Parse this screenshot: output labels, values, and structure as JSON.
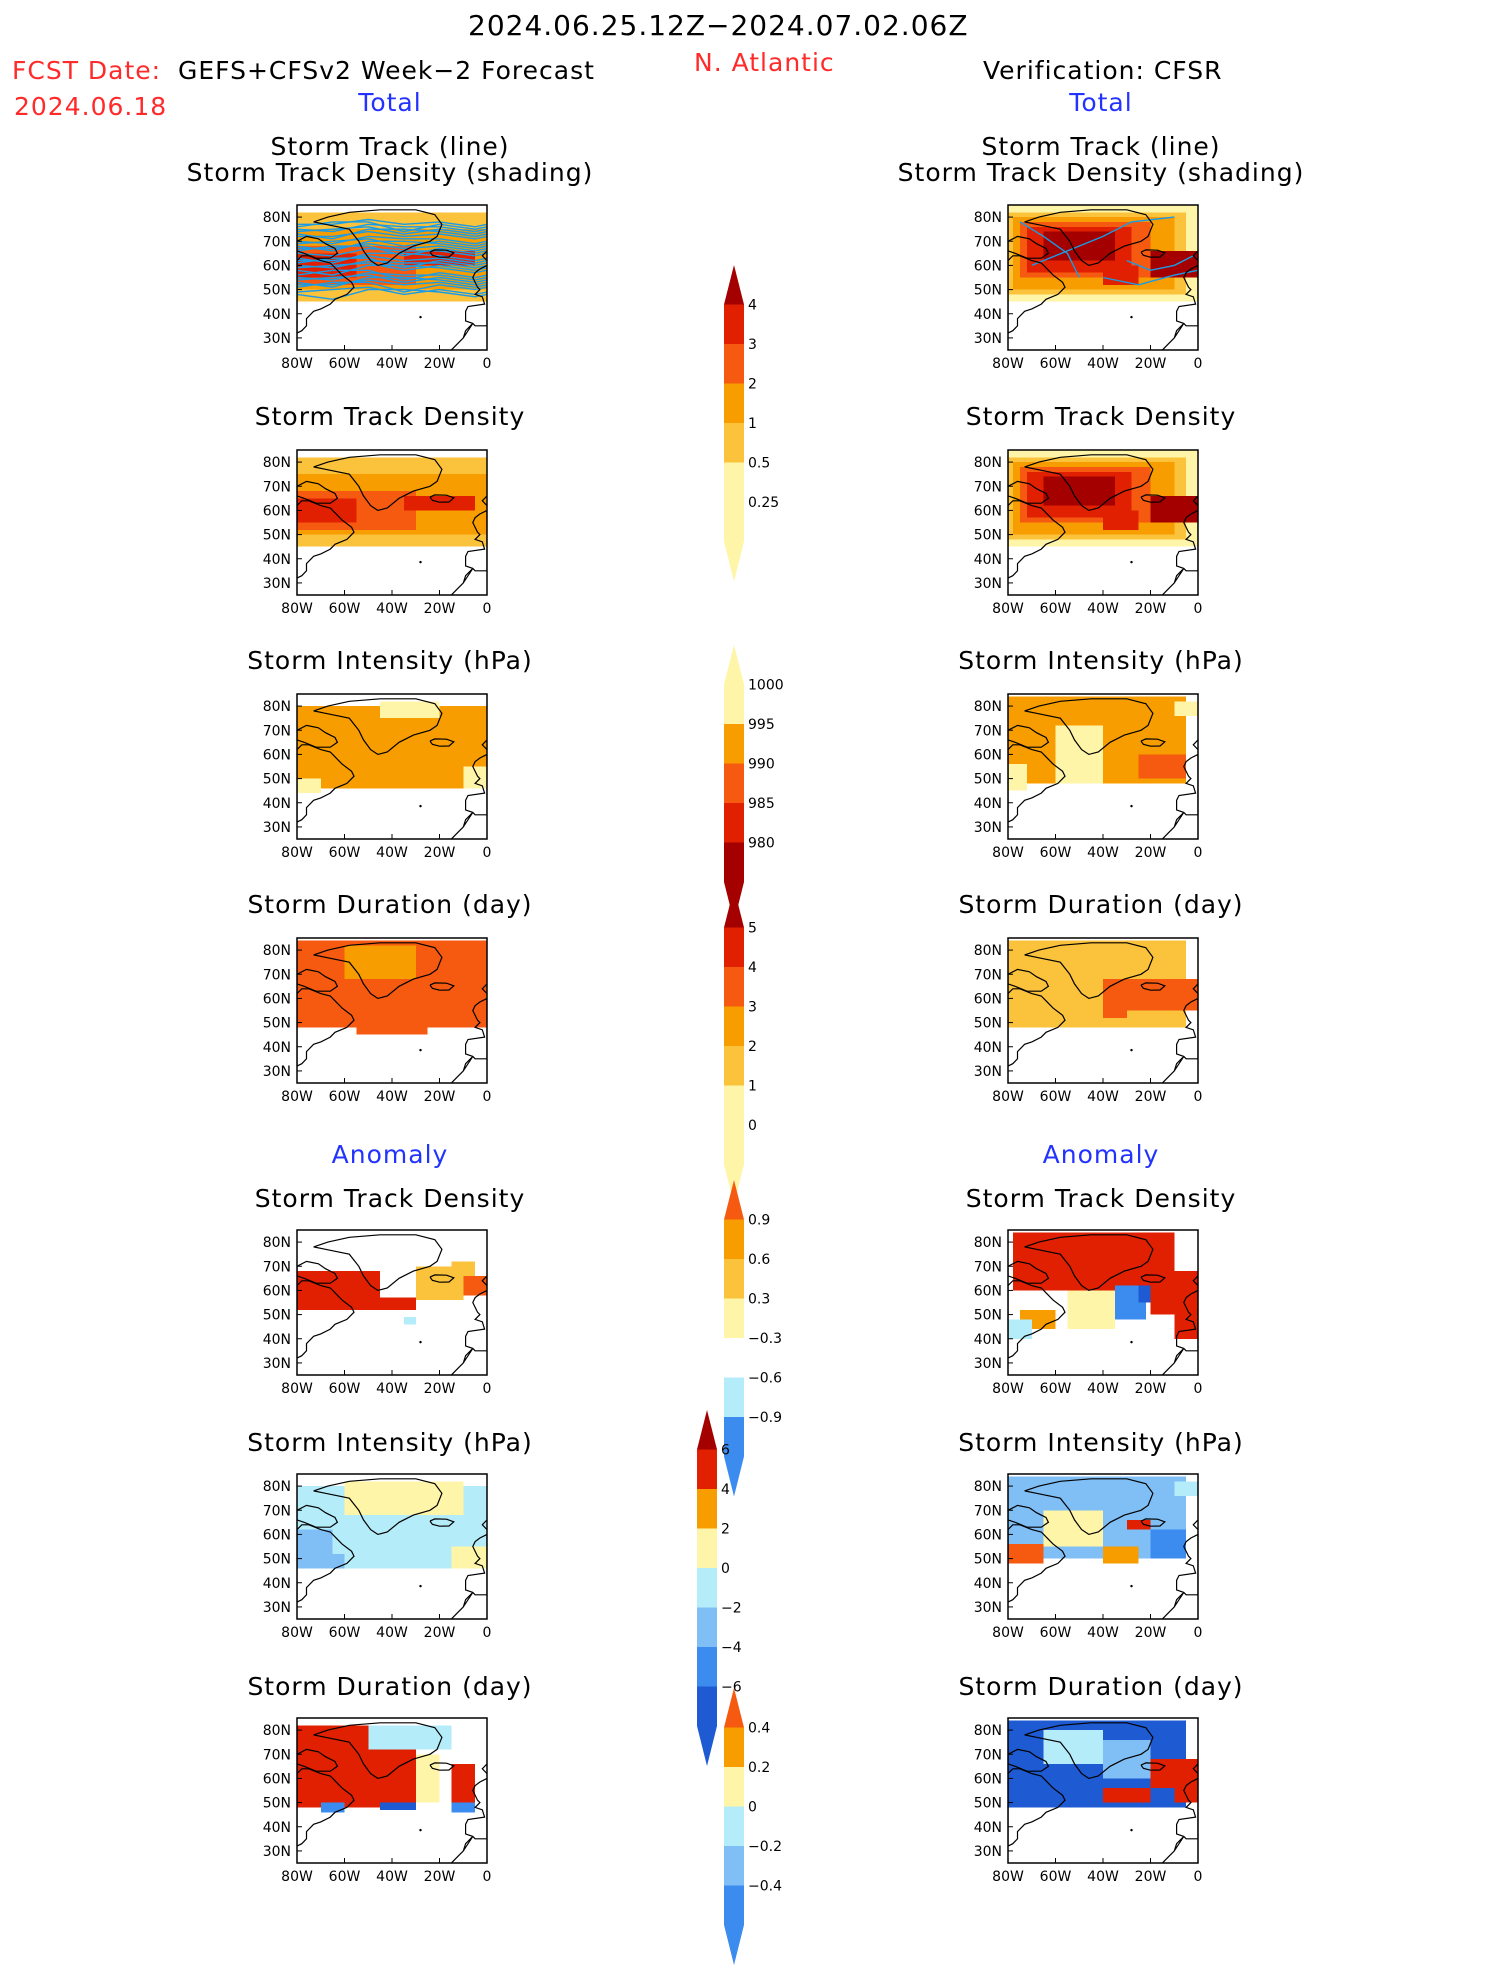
{
  "header": {
    "date_range": "2024.06.25.12Z−2024.07.02.06Z",
    "fcst_label": "FCST Date:",
    "model_label": "GEFS+CFSv2 Week−2 Forecast",
    "fcst_date": "2024.06.18",
    "region": "N. Atlantic",
    "verification": "Verification: CFSR"
  },
  "sections": {
    "total": "Total",
    "anomaly": "Anomaly"
  },
  "axes": {
    "lat_ticks": [
      "80N",
      "70N",
      "60N",
      "50N",
      "40N",
      "30N"
    ],
    "lon_ticks": [
      "80W",
      "60W",
      "40W",
      "20W",
      "0"
    ]
  },
  "panel_titles": {
    "track_line": "Storm Track (line)",
    "track_shading": "Storm Track Density (shading)",
    "density": "Storm Track Density",
    "intensity": "Storm Intensity (hPa)",
    "duration": "Storm Duration (day)"
  },
  "colorbars": {
    "density_total": [
      "4",
      "3",
      "2",
      "1",
      "0.5",
      "0.25"
    ],
    "intensity_total": [
      "1000",
      "995",
      "990",
      "985",
      "980"
    ],
    "duration_total": [
      "5",
      "4",
      "3",
      "2",
      "1",
      "0"
    ],
    "density_anom": [
      "0.9",
      "0.6",
      "0.3",
      "−0.3",
      "−0.6",
      "−0.9"
    ],
    "intensity_anom": [
      "6",
      "4",
      "2",
      "0",
      "−2",
      "−4",
      "−6"
    ],
    "duration_anom": [
      "0.4",
      "0.2",
      "0",
      "−0.2",
      "−0.4"
    ]
  },
  "colors": {
    "dark_red": "#a50000",
    "red": "#e02000",
    "orange_red": "#f65a10",
    "orange": "#f79d00",
    "light_orange": "#fbc23c",
    "pale_yellow": "#fff5a8",
    "light_blue": "#b4ecfa",
    "mid_blue": "#80bff5",
    "blue": "#3c8cf0",
    "dark_blue": "#1e5ad2",
    "track_line": "#1a9be6"
  }
}
